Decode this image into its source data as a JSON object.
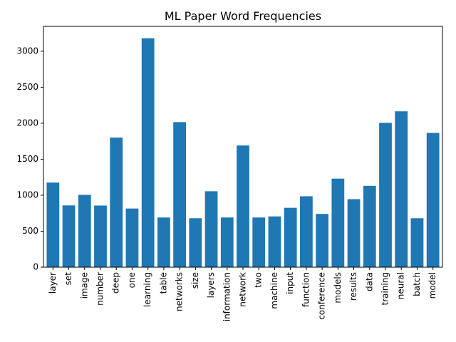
{
  "chart_data": {
    "type": "bar",
    "title": "ML Paper Word Frequencies",
    "xlabel": "",
    "ylabel": "",
    "categories": [
      "layer",
      "set",
      "image",
      "number",
      "deep",
      "one",
      "learning",
      "table",
      "networks",
      "size",
      "layers",
      "information",
      "network",
      "two",
      "machine",
      "input",
      "function",
      "conference",
      "models",
      "results",
      "data",
      "training",
      "neural",
      "batch",
      "model"
    ],
    "values": [
      1175,
      858,
      1005,
      856,
      1800,
      815,
      3180,
      690,
      2015,
      680,
      1055,
      690,
      1690,
      690,
      705,
      825,
      985,
      740,
      1230,
      945,
      1130,
      2005,
      2165,
      680,
      1865
    ],
    "ylim": [
      0,
      3345
    ],
    "yticks": [
      0,
      500,
      1000,
      1500,
      2000,
      2500,
      3000
    ],
    "grid": false,
    "colors": {
      "bar": "#1f77b4",
      "axis": "#000000",
      "background": "#ffffff"
    }
  }
}
